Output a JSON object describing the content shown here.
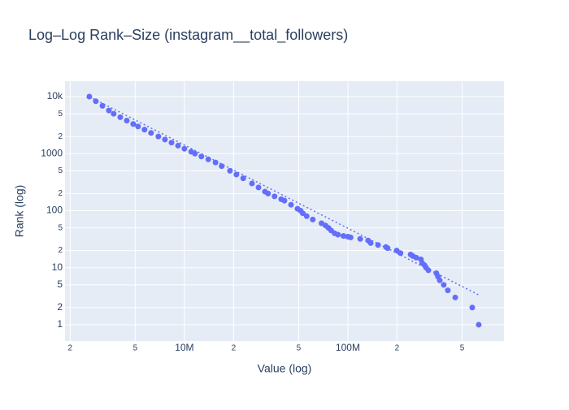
{
  "chart_data": {
    "type": "scatter",
    "title": "Log–Log Rank–Size (instagram__total_followers)",
    "x_label": "Value (log)",
    "y_label": "Rank (log)",
    "log_x": true,
    "log_y": true,
    "grid": true,
    "color": "#636efa",
    "xlim": [
      1860000,
      902000000
    ],
    "ylim": [
      0.518,
      18660
    ],
    "xticks": [
      {
        "value": 2000000,
        "label": "2"
      },
      {
        "value": 5000000,
        "label": "5"
      },
      {
        "value": 10000000,
        "label": "10M"
      },
      {
        "value": 20000000,
        "label": "2"
      },
      {
        "value": 50000000,
        "label": "5"
      },
      {
        "value": 100000000,
        "label": "100M"
      },
      {
        "value": 200000000,
        "label": "2"
      },
      {
        "value": 500000000,
        "label": "5"
      }
    ],
    "yticks": [
      1,
      2,
      5,
      10,
      {
        "value": 20,
        "label": "2"
      },
      {
        "value": 50,
        "label": "5"
      },
      100,
      {
        "value": 200,
        "label": "2"
      },
      {
        "value": 500,
        "label": "5"
      },
      1000,
      {
        "value": 2000,
        "label": "2"
      },
      {
        "value": 5000,
        "label": "5"
      },
      {
        "value": 10000,
        "label": "10k"
      }
    ],
    "x": [
      2620000,
      2870000,
      3150000,
      3450000,
      3690000,
      4050000,
      4440000,
      4860000,
      5200000,
      5700000,
      6250000,
      6930000,
      7600000,
      8340000,
      9140000,
      10000000,
      11000000,
      11600000,
      12700000,
      14000000,
      15500000,
      16900000,
      19000000,
      20800000,
      22900000,
      25900000,
      28400000,
      31100000,
      32500000,
      35600000,
      39100000,
      40900000,
      44900000,
      49200000,
      51400000,
      53000000,
      56000000,
      61000000,
      69000000,
      73000000,
      76000000,
      79000000,
      83000000,
      87000000,
      94000000,
      100000000,
      104000000,
      119000000,
      133000000,
      138000000,
      153000000,
      171000000,
      175000000,
      199000000,
      210000000,
      242000000,
      250000000,
      262000000,
      280000000,
      285000000,
      295000000,
      301000000,
      311000000,
      348000000,
      356000000,
      365000000,
      386000000,
      409000000,
      454000000,
      577000000,
      632000000
    ],
    "values": [
      10000,
      8300,
      6890,
      5710,
      5000,
      4360,
      3800,
      3310,
      3000,
      2640,
      2310,
      2000,
      1770,
      1560,
      1380,
      1220,
      1080,
      1000,
      891,
      794,
      700,
      603,
      500,
      430,
      369,
      300,
      255,
      216,
      200,
      178,
      159,
      150,
      127,
      108,
      100,
      90,
      80,
      70,
      60,
      55,
      50,
      45,
      40,
      38,
      36,
      35,
      34,
      32,
      30,
      27,
      25,
      23,
      22,
      20,
      18,
      17,
      16,
      15,
      14,
      12,
      11,
      10,
      9,
      8,
      7,
      6,
      5,
      4,
      3,
      2,
      1
    ],
    "trendline": {
      "x": [
        2620000,
        640000000
      ],
      "values": [
        10000,
        3.27
      ]
    }
  }
}
